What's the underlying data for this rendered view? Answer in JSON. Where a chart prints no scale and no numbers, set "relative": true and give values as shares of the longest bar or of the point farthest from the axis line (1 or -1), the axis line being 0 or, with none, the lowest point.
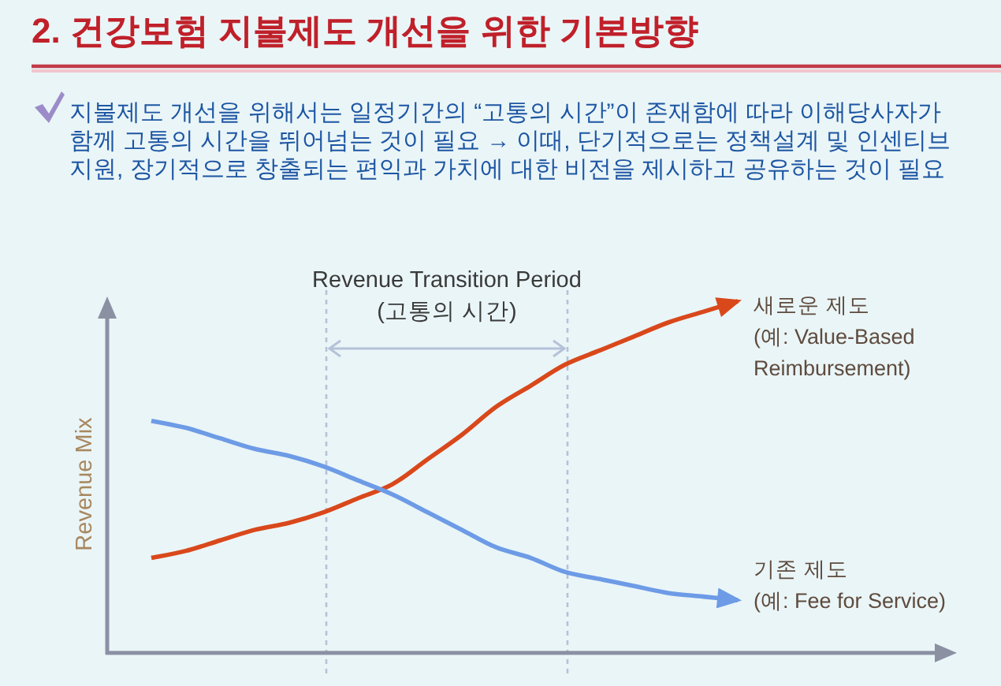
{
  "chart_data": {
    "type": "line",
    "title": "2. 건강보험 지불제도 개선을 위한 기본방향",
    "subtitle": "지불제도 개선을 위해서는 일정기간의 “고통의 시간”이 존재함에 따라 이해당사자가\n함께 고통의 시간을 뛰어넘는 것이 필요 → 이때,  단기적으로는 정책설계 및 인센티브\n지원, 장기적으로 창출되는 편익과 가치에 대한 비전을 제시하고 공유하는 것이 필요",
    "ylabel": "Revenue Mix",
    "relative": true,
    "categories": [
      null,
      null,
      null,
      null,
      null,
      null,
      null,
      null,
      null,
      null,
      null,
      null,
      null,
      null,
      null,
      null,
      null,
      null
    ],
    "series": [
      {
        "name": "새로운 제도\n(예: Value-Based\nReimbursement)",
        "color": "#d9481b",
        "values": [
          0.27,
          0.29,
          0.32,
          0.35,
          0.37,
          0.4,
          0.44,
          0.48,
          0.55,
          0.62,
          0.7,
          0.76,
          0.82,
          0.86,
          0.9,
          0.94,
          0.97,
          1
        ]
      },
      {
        "name": "기존 제도\n(예: Fee for Service)",
        "color": "#6d9be6",
        "values": [
          0.66,
          0.64,
          0.61,
          0.58,
          0.56,
          0.53,
          0.49,
          0.45,
          0.4,
          0.35,
          0.3,
          0.27,
          0.23,
          0.21,
          0.19,
          0.17,
          0.16,
          0.15
        ]
      }
    ],
    "annotations": [
      "Revenue Transition Period\n(고통의 시간)"
    ]
  }
}
